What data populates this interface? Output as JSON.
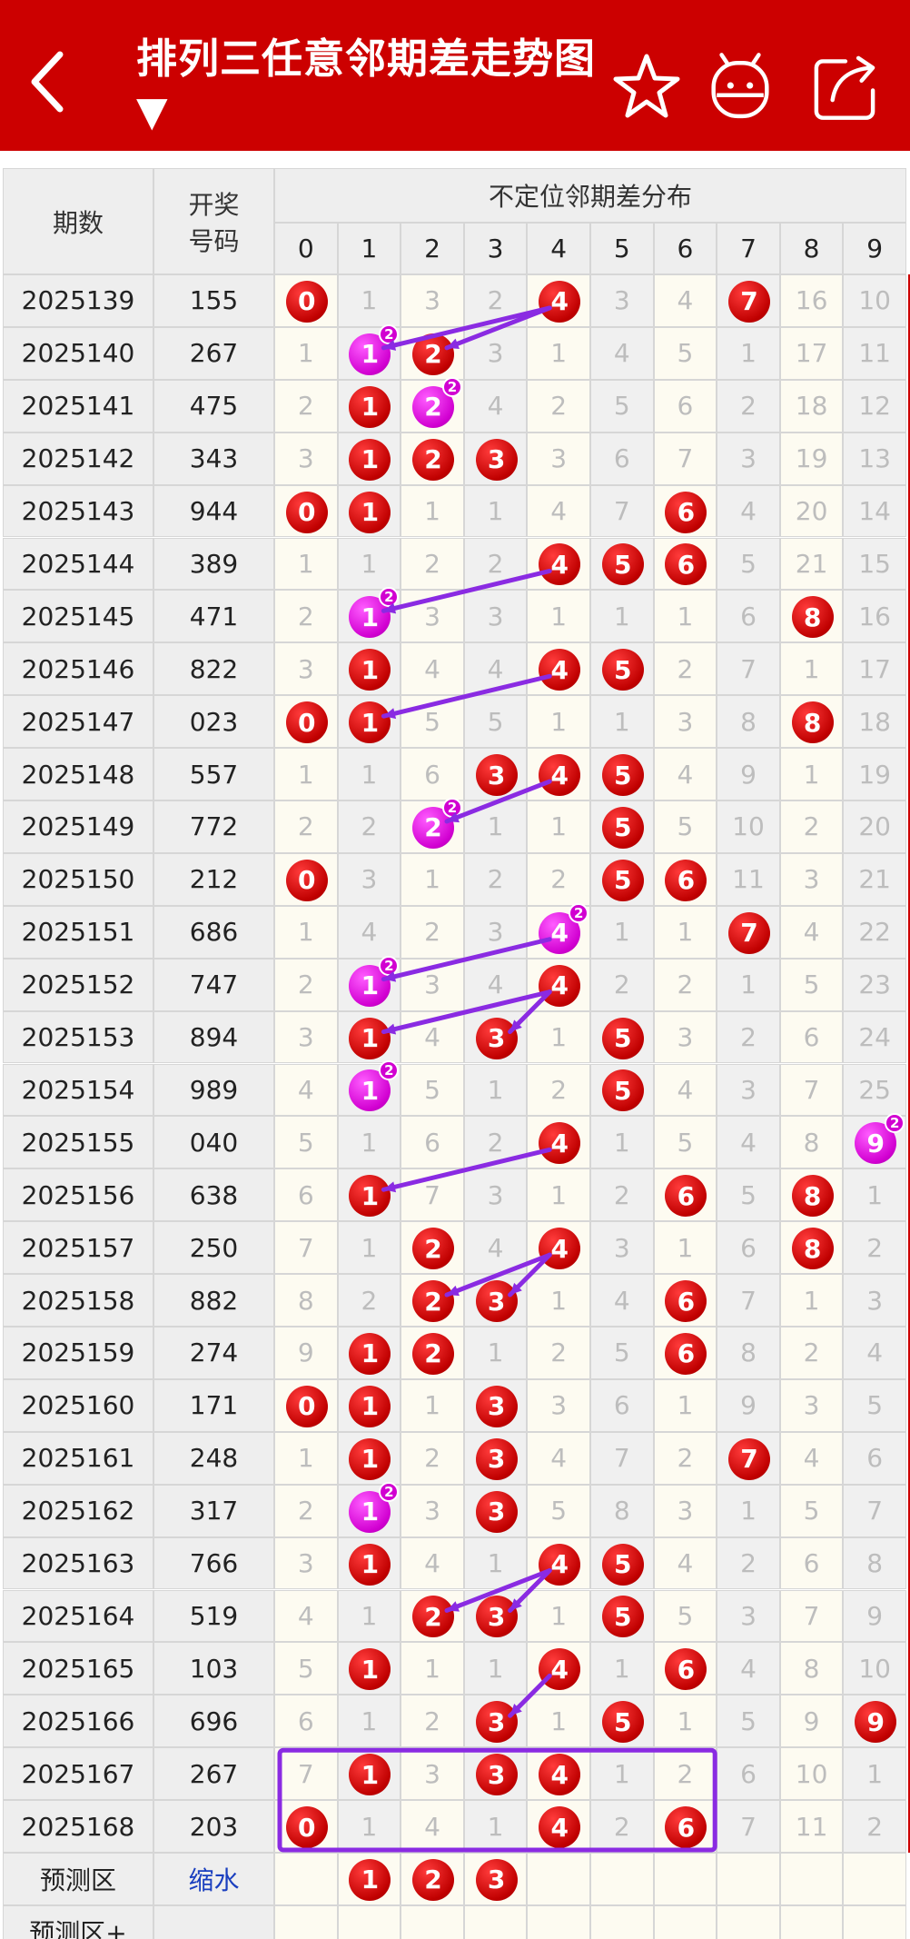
{
  "header": {
    "title": "排列三任意邻期差走势图 ▼",
    "back_icon": "chevron-left-icon",
    "star_icon": "star-icon",
    "robot_icon": "robot-icon",
    "share_icon": "share-icon",
    "bg_color": "#cc0000"
  },
  "table": {
    "col_period": "期数",
    "col_number_line1": "开奖",
    "col_number_line2": "号码",
    "group_title": "不定位邻期差分布",
    "digits": [
      "0",
      "1",
      "2",
      "3",
      "4",
      "5",
      "6",
      "7",
      "8",
      "9"
    ],
    "rows": [
      {
        "period": "2025139",
        "number": "155",
        "cells": [
          "0",
          "1",
          "3",
          "2",
          "4",
          "3",
          "4",
          "7",
          "16",
          "10"
        ],
        "hits": [
          0,
          4,
          7
        ],
        "repeat": []
      },
      {
        "period": "2025140",
        "number": "267",
        "cells": [
          "1",
          "1",
          "2",
          "3",
          "1",
          "4",
          "5",
          "1",
          "17",
          "11"
        ],
        "hits": [
          1,
          2
        ],
        "repeat": [
          1
        ]
      },
      {
        "period": "2025141",
        "number": "475",
        "cells": [
          "2",
          "1",
          "2",
          "4",
          "2",
          "5",
          "6",
          "2",
          "18",
          "12"
        ],
        "hits": [
          1,
          2
        ],
        "repeat": [
          2
        ]
      },
      {
        "period": "2025142",
        "number": "343",
        "cells": [
          "3",
          "1",
          "2",
          "3",
          "3",
          "6",
          "7",
          "3",
          "19",
          "13"
        ],
        "hits": [
          1,
          2,
          3
        ],
        "repeat": []
      },
      {
        "period": "2025143",
        "number": "944",
        "cells": [
          "0",
          "1",
          "1",
          "1",
          "4",
          "7",
          "6",
          "4",
          "20",
          "14"
        ],
        "hits": [
          0,
          1,
          6
        ],
        "repeat": []
      },
      {
        "period": "2025144",
        "number": "389",
        "cells": [
          "1",
          "1",
          "2",
          "2",
          "4",
          "5",
          "6",
          "5",
          "21",
          "15"
        ],
        "hits": [
          4,
          5,
          6
        ],
        "repeat": []
      },
      {
        "period": "2025145",
        "number": "471",
        "cells": [
          "2",
          "1",
          "3",
          "3",
          "1",
          "1",
          "1",
          "6",
          "8",
          "16"
        ],
        "hits": [
          1,
          8
        ],
        "repeat": [
          1
        ]
      },
      {
        "period": "2025146",
        "number": "822",
        "cells": [
          "3",
          "1",
          "4",
          "4",
          "4",
          "5",
          "2",
          "7",
          "1",
          "17"
        ],
        "hits": [
          1,
          4,
          5
        ],
        "repeat": []
      },
      {
        "period": "2025147",
        "number": "023",
        "cells": [
          "0",
          "1",
          "5",
          "5",
          "1",
          "1",
          "3",
          "8",
          "8",
          "18"
        ],
        "hits": [
          0,
          1,
          8
        ],
        "repeat": []
      },
      {
        "period": "2025148",
        "number": "557",
        "cells": [
          "1",
          "1",
          "6",
          "3",
          "4",
          "5",
          "4",
          "9",
          "1",
          "19"
        ],
        "hits": [
          3,
          4,
          5
        ],
        "repeat": []
      },
      {
        "period": "2025149",
        "number": "772",
        "cells": [
          "2",
          "2",
          "2",
          "1",
          "1",
          "5",
          "5",
          "10",
          "2",
          "20"
        ],
        "hits": [
          2,
          5
        ],
        "repeat": [
          2
        ]
      },
      {
        "period": "2025150",
        "number": "212",
        "cells": [
          "0",
          "3",
          "1",
          "2",
          "2",
          "5",
          "6",
          "11",
          "3",
          "21"
        ],
        "hits": [
          0,
          5,
          6
        ],
        "repeat": []
      },
      {
        "period": "2025151",
        "number": "686",
        "cells": [
          "1",
          "4",
          "2",
          "3",
          "4",
          "1",
          "1",
          "7",
          "4",
          "22"
        ],
        "hits": [
          4,
          7
        ],
        "repeat": [
          4
        ]
      },
      {
        "period": "2025152",
        "number": "747",
        "cells": [
          "2",
          "1",
          "3",
          "4",
          "4",
          "2",
          "2",
          "1",
          "5",
          "23"
        ],
        "hits": [
          1,
          4
        ],
        "repeat": [
          1
        ]
      },
      {
        "period": "2025153",
        "number": "894",
        "cells": [
          "3",
          "1",
          "4",
          "3",
          "1",
          "5",
          "3",
          "2",
          "6",
          "24"
        ],
        "hits": [
          1,
          3,
          5
        ],
        "repeat": []
      },
      {
        "period": "2025154",
        "number": "989",
        "cells": [
          "4",
          "1",
          "5",
          "1",
          "2",
          "5",
          "4",
          "3",
          "7",
          "25"
        ],
        "hits": [
          1,
          5
        ],
        "repeat": [
          1
        ]
      },
      {
        "period": "2025155",
        "number": "040",
        "cells": [
          "5",
          "1",
          "6",
          "2",
          "4",
          "1",
          "5",
          "4",
          "8",
          "9"
        ],
        "hits": [
          4,
          9
        ],
        "repeat": [
          9
        ]
      },
      {
        "period": "2025156",
        "number": "638",
        "cells": [
          "6",
          "1",
          "7",
          "3",
          "1",
          "2",
          "6",
          "5",
          "8",
          "1"
        ],
        "hits": [
          1,
          6,
          8
        ],
        "repeat": []
      },
      {
        "period": "2025157",
        "number": "250",
        "cells": [
          "7",
          "1",
          "2",
          "4",
          "4",
          "3",
          "1",
          "6",
          "8",
          "2"
        ],
        "hits": [
          2,
          4,
          8
        ],
        "repeat": []
      },
      {
        "period": "2025158",
        "number": "882",
        "cells": [
          "8",
          "2",
          "2",
          "3",
          "1",
          "4",
          "6",
          "7",
          "1",
          "3"
        ],
        "hits": [
          2,
          3,
          6
        ],
        "repeat": []
      },
      {
        "period": "2025159",
        "number": "274",
        "cells": [
          "9",
          "1",
          "2",
          "1",
          "2",
          "5",
          "6",
          "8",
          "2",
          "4"
        ],
        "hits": [
          1,
          2,
          6
        ],
        "repeat": []
      },
      {
        "period": "2025160",
        "number": "171",
        "cells": [
          "0",
          "1",
          "1",
          "3",
          "3",
          "6",
          "1",
          "9",
          "3",
          "5"
        ],
        "hits": [
          0,
          1,
          3
        ],
        "repeat": []
      },
      {
        "period": "2025161",
        "number": "248",
        "cells": [
          "1",
          "1",
          "2",
          "3",
          "4",
          "7",
          "2",
          "7",
          "4",
          "6"
        ],
        "hits": [
          1,
          3,
          7
        ],
        "repeat": []
      },
      {
        "period": "2025162",
        "number": "317",
        "cells": [
          "2",
          "1",
          "3",
          "3",
          "5",
          "8",
          "3",
          "1",
          "5",
          "7"
        ],
        "hits": [
          1,
          3
        ],
        "repeat": [
          1
        ]
      },
      {
        "period": "2025163",
        "number": "766",
        "cells": [
          "3",
          "1",
          "4",
          "1",
          "4",
          "5",
          "4",
          "2",
          "6",
          "8"
        ],
        "hits": [
          1,
          4,
          5
        ],
        "repeat": []
      },
      {
        "period": "2025164",
        "number": "519",
        "cells": [
          "4",
          "1",
          "2",
          "3",
          "1",
          "5",
          "5",
          "3",
          "7",
          "9"
        ],
        "hits": [
          2,
          3,
          5
        ],
        "repeat": []
      },
      {
        "period": "2025165",
        "number": "103",
        "cells": [
          "5",
          "1",
          "1",
          "1",
          "4",
          "1",
          "6",
          "4",
          "8",
          "10"
        ],
        "hits": [
          1,
          4,
          6
        ],
        "repeat": []
      },
      {
        "period": "2025166",
        "number": "696",
        "cells": [
          "6",
          "1",
          "2",
          "3",
          "1",
          "5",
          "1",
          "5",
          "9",
          "9"
        ],
        "hits": [
          3,
          5,
          9
        ],
        "repeat": []
      },
      {
        "period": "2025167",
        "number": "267",
        "cells": [
          "7",
          "1",
          "3",
          "3",
          "4",
          "1",
          "2",
          "6",
          "10",
          "1"
        ],
        "hits": [
          1,
          3,
          4
        ],
        "repeat": []
      },
      {
        "period": "2025168",
        "number": "203",
        "cells": [
          "0",
          "1",
          "4",
          "1",
          "4",
          "2",
          "6",
          "7",
          "11",
          "2"
        ],
        "hits": [
          0,
          4,
          6
        ],
        "repeat": []
      }
    ],
    "repeat_marker": "2",
    "predict_label": "预测区",
    "predict_action": "缩水",
    "predict_balls": [
      "1",
      "2",
      "3"
    ],
    "predict_plus_label": "预测区+"
  },
  "colors": {
    "hit_red": "#cc0000",
    "repeat_magenta": "#d100d1",
    "line_purple": "#8a2be2",
    "shaded_col": "#f0f0f0",
    "cell_bg": "#fdfbf1"
  }
}
